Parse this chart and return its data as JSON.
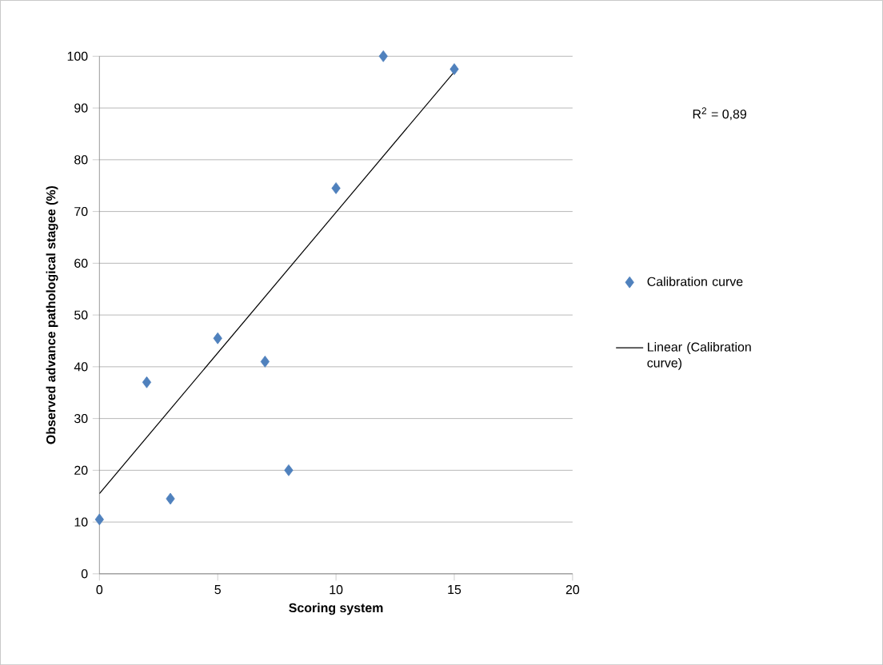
{
  "chart_data": {
    "type": "scatter",
    "xlabel": "Scoring system",
    "ylabel": "Observed advance pathological stagee (%)",
    "x": [
      0,
      2,
      3,
      5,
      7,
      8,
      10,
      12,
      15
    ],
    "series": [
      {
        "name": "Calibration curve",
        "color": "#4f81bd",
        "marker": "diamond",
        "values": [
          10.5,
          37,
          14.5,
          45.5,
          41,
          20,
          74.5,
          100,
          97.5
        ]
      },
      {
        "name": "Linear (Calibration curve)",
        "type": "line",
        "color": "#000000",
        "marker": "none",
        "line_style": "solid",
        "x": [
          0,
          15
        ],
        "values": [
          15.5,
          97
        ]
      }
    ],
    "xlim": [
      0,
      20
    ],
    "xticks": [
      0,
      5,
      10,
      15,
      20
    ],
    "ylim": [
      0,
      100
    ],
    "yticks": [
      0,
      10,
      20,
      30,
      40,
      50,
      60,
      70,
      80,
      90,
      100
    ],
    "grid": "y",
    "legend": "right",
    "annotations": [
      "R$^{2}$ = 0,89"
    ]
  }
}
